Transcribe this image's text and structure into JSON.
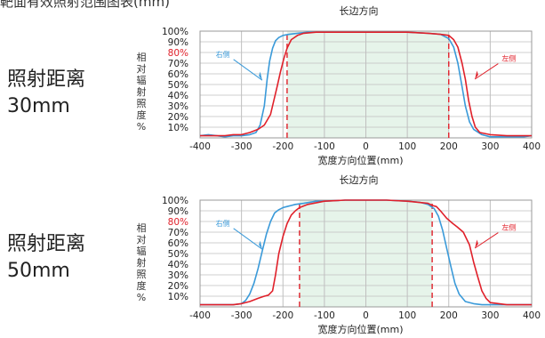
{
  "page_title": "靶面有效照射范围图表(mm)",
  "colors": {
    "right_side": "#3a9ad9",
    "left_side": "#e0202a",
    "dashed": "#e0202a",
    "shade": "#e6f4ea",
    "grid": "#bfbfbf",
    "tick_text": "#222222",
    "tick_highlight": "#e0202a"
  },
  "charts": [
    {
      "row_label_line1": "照射距离",
      "row_label_line2": "30mm",
      "ylabel_chars": [
        "相",
        "对",
        "辐",
        "射",
        "照",
        "度",
        "%"
      ]
    },
    {
      "row_label_line1": "照射距离",
      "row_label_line2": "50mm",
      "ylabel_chars": [
        "相",
        "对",
        "辐",
        "射",
        "照",
        "度",
        "%"
      ]
    }
  ],
  "chart_data": [
    {
      "type": "line",
      "title": "长边方向",
      "xlabel": "宽度方向位置(mm)",
      "ylabel": "相对辐射照度%",
      "xlim": [
        -400,
        400
      ],
      "ylim": [
        0,
        100
      ],
      "x_ticks": [
        -400,
        -300,
        -200,
        -100,
        0,
        100,
        200,
        300,
        400
      ],
      "x_tick_labels": [
        "-400",
        "-300",
        "-200",
        "-100",
        "0",
        "100",
        "200",
        "300",
        "400"
      ],
      "y_ticks": [
        10,
        20,
        30,
        40,
        50,
        60,
        70,
        80,
        90,
        100
      ],
      "y_tick_labels": [
        "10%",
        "20%",
        "30%",
        "40%",
        "50%",
        "60%",
        "70%",
        "80%",
        "90%",
        "100%"
      ],
      "highlight_y_tick": "80%",
      "grid": true,
      "shaded_range": [
        -190,
        200
      ],
      "dashed_lines": [
        -190,
        200
      ],
      "series": [
        {
          "name": "右侧",
          "color": "#3a9ad9",
          "label_side": "left",
          "x": [
            -400,
            -380,
            -360,
            -340,
            -320,
            -300,
            -280,
            -265,
            -255,
            -245,
            -238,
            -232,
            -225,
            -218,
            -210,
            -200,
            -185,
            -165,
            -140,
            -100,
            -50,
            0,
            50,
            100,
            150,
            180,
            200,
            212,
            222,
            232,
            240,
            250,
            260,
            280,
            300,
            340,
            380,
            400
          ],
          "y": [
            2,
            3,
            2,
            1,
            2,
            2,
            3,
            5,
            12,
            30,
            55,
            72,
            84,
            91,
            94,
            96,
            97,
            98,
            99,
            99,
            99,
            99,
            99,
            99,
            98,
            97,
            93,
            85,
            70,
            48,
            30,
            15,
            8,
            3,
            1,
            1,
            1,
            2
          ]
        },
        {
          "name": "左侧",
          "color": "#e0202a",
          "label_side": "right",
          "x": [
            -400,
            -380,
            -360,
            -340,
            -320,
            -300,
            -280,
            -260,
            -245,
            -230,
            -222,
            -214,
            -206,
            -198,
            -190,
            -180,
            -165,
            -150,
            -120,
            -100,
            -50,
            0,
            50,
            100,
            150,
            180,
            200,
            212,
            222,
            232,
            240,
            248,
            256,
            264,
            275,
            300,
            340,
            380,
            400
          ],
          "y": [
            2,
            2,
            2,
            2,
            3,
            3,
            5,
            8,
            12,
            22,
            35,
            48,
            62,
            74,
            84,
            92,
            96,
            98,
            99,
            99,
            99,
            99,
            99,
            99,
            98,
            97,
            96,
            92,
            85,
            70,
            55,
            35,
            20,
            10,
            5,
            3,
            2,
            2,
            2
          ]
        }
      ]
    },
    {
      "type": "line",
      "title": "长边方向",
      "xlabel": "宽度方向位置(mm)",
      "ylabel": "相对辐射照度%",
      "xlim": [
        -400,
        400
      ],
      "ylim": [
        0,
        100
      ],
      "x_ticks": [
        -400,
        -300,
        -200,
        -100,
        0,
        100,
        200,
        300,
        400
      ],
      "x_tick_labels": [
        "-400",
        "-300",
        "-200",
        "-100",
        "0",
        "100",
        "200",
        "300",
        "400"
      ],
      "y_ticks": [
        10,
        20,
        30,
        40,
        50,
        60,
        70,
        80,
        90,
        100
      ],
      "y_tick_labels": [
        "10%",
        "20%",
        "30%",
        "40%",
        "50%",
        "60%",
        "70%",
        "80%",
        "90%",
        "100%"
      ],
      "highlight_y_tick": "80%",
      "grid": true,
      "shaded_range": [
        -160,
        160
      ],
      "dashed_lines": [
        -160,
        160
      ],
      "series": [
        {
          "name": "右侧",
          "color": "#3a9ad9",
          "label_side": "left",
          "x": [
            -400,
            -380,
            -360,
            -340,
            -320,
            -300,
            -290,
            -280,
            -270,
            -260,
            -250,
            -240,
            -230,
            -220,
            -210,
            -200,
            -190,
            -180,
            -170,
            -150,
            -120,
            -100,
            -50,
            0,
            50,
            100,
            130,
            150,
            165,
            175,
            185,
            195,
            205,
            215,
            225,
            240,
            260,
            280,
            300,
            340,
            380,
            400
          ],
          "y": [
            2,
            2,
            2,
            2,
            2,
            3,
            6,
            12,
            22,
            36,
            52,
            68,
            80,
            88,
            91,
            93,
            94,
            95,
            96,
            97,
            99,
            99,
            100,
            100,
            100,
            99,
            98,
            96,
            92,
            85,
            72,
            55,
            38,
            22,
            12,
            5,
            3,
            2,
            2,
            2,
            2,
            2
          ]
        },
        {
          "name": "左侧",
          "color": "#e0202a",
          "label_side": "right",
          "x": [
            -400,
            -380,
            -360,
            -340,
            -320,
            -300,
            -280,
            -260,
            -245,
            -235,
            -225,
            -218,
            -210,
            -200,
            -190,
            -180,
            -170,
            -160,
            -140,
            -100,
            -50,
            0,
            50,
            100,
            150,
            160,
            170,
            180,
            195,
            210,
            220,
            235,
            250,
            260,
            270,
            280,
            290,
            300,
            340,
            380,
            400
          ],
          "y": [
            2,
            2,
            2,
            2,
            2,
            3,
            5,
            8,
            10,
            11,
            15,
            30,
            50,
            66,
            78,
            86,
            90,
            93,
            96,
            99,
            100,
            100,
            100,
            99,
            97,
            95,
            94,
            90,
            83,
            78,
            75,
            70,
            58,
            42,
            28,
            15,
            8,
            4,
            2,
            2,
            2
          ]
        }
      ]
    }
  ]
}
